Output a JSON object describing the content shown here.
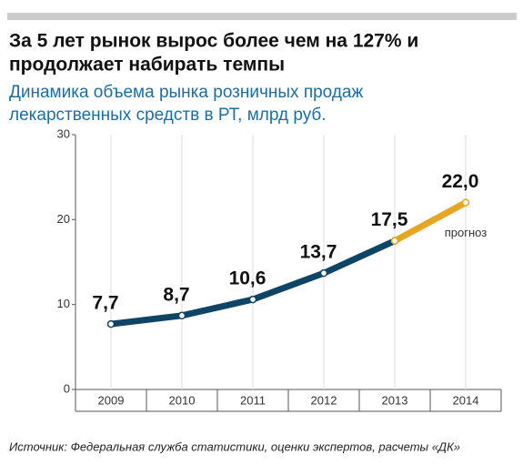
{
  "chart_data": {
    "type": "line",
    "title": [
      "За 5 лет рынок вырос более чем на 127% и",
      "продолжает набирать темпы"
    ],
    "subtitle": [
      "Динамика объема рынка розничных продаж",
      "лекарственных средств в РТ, млрд руб."
    ],
    "categories": [
      "2009",
      "2010",
      "2011",
      "2012",
      "2013",
      "2014"
    ],
    "series": [
      {
        "color": "#0e4466",
        "values": [
          7.7,
          8.7,
          10.6,
          13.7,
          17.5,
          null
        ],
        "value_labels": [
          "7,7",
          "8,7",
          "10,6",
          "13,7",
          "17,5",
          null
        ]
      },
      {
        "color": "#e6a623",
        "values": [
          null,
          null,
          null,
          null,
          17.5,
          22.0
        ],
        "value_labels": [
          null,
          null,
          null,
          null,
          null,
          "22,0"
        ]
      }
    ],
    "annotation": "прогноз",
    "ylim": [
      0,
      30
    ],
    "yticks": [
      0,
      10,
      20,
      30
    ],
    "grid": true,
    "source": "Источник: Федеральная служба статистики, оценки экспертов, расчеты «ДК»"
  }
}
